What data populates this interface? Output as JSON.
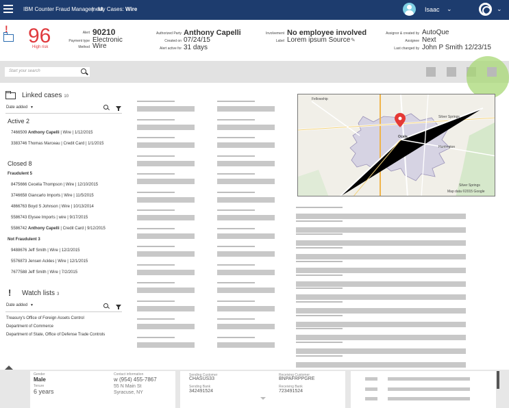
{
  "topbar": {
    "app_title": "IBM Counter Fraud Management",
    "breadcrumb_prefix": "My Cases:",
    "breadcrumb_case": "Wire",
    "user_name": "Isaac"
  },
  "case_header": {
    "score": "96",
    "risk_label": "High risk",
    "alert_label": "Alert",
    "alert_value": "90210",
    "payment_type_label": "Payment type",
    "payment_type_value": "Electronic",
    "method_label": "Method",
    "method_value": "Wire",
    "authorized_party_label": "Authorized Party",
    "authorized_party_value": "Anthony Capelli",
    "created_on_label": "Created on",
    "created_on_value": "07/24/15",
    "alert_active_label": "Alert active for",
    "alert_active_value": "31 days",
    "involvement_label": "Involvement",
    "involvement_value": "No employee involved",
    "label_label": "Label",
    "label_value": "Lorem ipsum Source",
    "assignor_label": "Assignor & created by",
    "assignor_value": "AutoQue",
    "assignee_label": "Assignee",
    "assignee_value": "Next",
    "last_changed_label": "Last changed by",
    "last_changed_value": "John P Smith 12/23/15"
  },
  "search": {
    "placeholder": "Start your search"
  },
  "linked_cases": {
    "title": "Linked cases",
    "count": "10",
    "sort_label": "Date added",
    "active_title": "Active 2",
    "active": [
      {
        "id": "7466509",
        "name": "Anthony Capelli",
        "type": "Wire",
        "date": "1/12/2015",
        "bold": true
      },
      {
        "id": "3383746",
        "name": "Thomas Marceau",
        "type": "Credit Card",
        "date": "1/1/2015",
        "bold": false
      }
    ],
    "closed_title": "Closed 8",
    "fraudulent_title": "Fraudulent 5",
    "fraudulent": [
      {
        "id": "8475666",
        "name": "Cecelia Thompson",
        "type": "Wire",
        "date": "12/10/2015",
        "bold": false
      },
      {
        "id": "3746658",
        "name": "Giancarlo Imports",
        "type": "Wire",
        "date": "11/5/2015",
        "bold": false
      },
      {
        "id": "4866763",
        "name": "Boyd S Johnson",
        "type": "Wire",
        "date": "10/13/2014",
        "bold": false
      },
      {
        "id": "5586743",
        "name": "Elysee Imports",
        "type": "wire",
        "date": "9/17/2015",
        "bold": false
      },
      {
        "id": "5586742",
        "name": "Anthony Capelli",
        "type": "Credit Card",
        "date": "9/12/2015",
        "bold": true
      }
    ],
    "not_fraudulent_title": "Not Fraudulent 3",
    "not_fraudulent": [
      {
        "id": "9488676",
        "name": "Jeff Smith",
        "type": "Wire",
        "date": "12/2/2015",
        "bold": false
      },
      {
        "id": "5576873",
        "name": "Jensen Ackles",
        "type": "Wire",
        "date": "12/1/2015",
        "bold": false
      },
      {
        "id": "7677588",
        "name": "Jeff Smith",
        "type": "Wire",
        "date": "7/2/2015",
        "bold": false
      }
    ]
  },
  "watch_lists": {
    "title": "Watch lists",
    "count": "3",
    "sort_label": "Date added",
    "items": [
      "Treasury's Office of Foreign Assets Control",
      "Department of Commerce",
      "Department of State, Office of Defense Trade Controls"
    ]
  },
  "map": {
    "labels": [
      "Fellowship",
      "Silver Springs",
      "Ocala",
      "Huntington",
      "Silver Springs"
    ],
    "attribution": "Map data ©2015 Google"
  },
  "bottom": {
    "gender_label": "Gender",
    "gender_value": "Male",
    "tenure_label": "Tenure",
    "tenure_value": "6 years",
    "contact_label": "Contact information",
    "contact_phone": "w (954) 455-7867",
    "contact_street": "55 N Main St",
    "contact_city": "Syracuse, NY",
    "sending_customer_label": "Sending Customer",
    "sending_customer_value": "CHASUS33",
    "sending_bank_label": "Sending Bank",
    "sending_bank_value": "342491524",
    "receiving_customer_label": "Receiving Customer",
    "receiving_customer_value": "BNPAFRPPGRE",
    "receiving_bank_label": "Receiving Bank",
    "receiving_bank_value": "723491524"
  },
  "colors": {
    "topbar": "#1d3c6e",
    "risk_red": "#e03a3e",
    "avatar": "#7fd0e4",
    "highlight": "#a8d875"
  }
}
